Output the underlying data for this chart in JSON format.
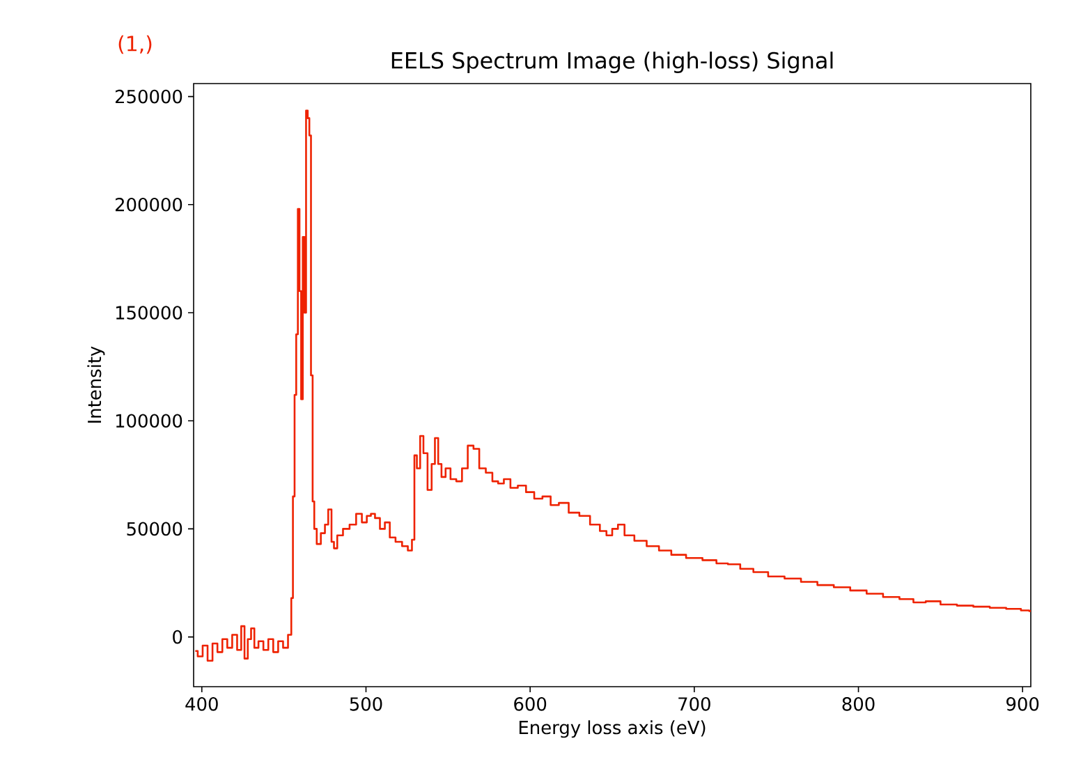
{
  "chart_data": {
    "type": "step",
    "title": "EELS Spectrum Image (high-loss) Signal",
    "xlabel": "Energy loss axis (eV)",
    "ylabel": "Intensity",
    "annotations": [
      "(1,)"
    ],
    "xlim": [
      395,
      905
    ],
    "ylim": [
      -23000,
      256000
    ],
    "xticks": [
      400,
      500,
      600,
      700,
      800,
      900
    ],
    "yticks": [
      0,
      50000,
      100000,
      150000,
      200000,
      250000
    ],
    "series": [
      {
        "color": "#ee2200",
        "x": [
          396,
          399,
          402,
          405,
          408,
          411,
          414,
          417,
          420,
          423,
          425,
          427,
          429,
          431,
          433,
          436,
          439,
          442,
          445,
          448,
          451,
          454,
          455,
          456,
          457,
          458,
          459,
          460,
          461,
          462,
          463,
          464,
          465,
          466,
          467,
          468,
          469,
          471,
          474,
          476,
          478,
          480,
          481,
          484,
          488,
          492,
          496,
          499,
          502,
          504,
          507,
          510,
          513,
          516,
          520,
          524,
          527,
          529,
          530,
          532,
          534,
          536,
          539,
          541,
          543,
          545,
          547,
          550,
          553,
          557,
          560,
          564,
          567,
          571,
          575,
          579,
          582,
          586,
          590,
          595,
          600,
          605,
          610,
          615,
          620,
          627,
          633,
          640,
          645,
          648,
          652,
          655,
          660,
          667,
          675,
          682,
          690,
          700,
          710,
          717,
          724,
          732,
          740,
          750,
          760,
          770,
          780,
          790,
          800,
          810,
          820,
          830,
          837,
          845,
          855,
          865,
          875,
          885,
          895,
          903,
          905
        ],
        "values": [
          -6500,
          -9000,
          -4000,
          -11000,
          -3000,
          -7000,
          -1000,
          -5000,
          1000,
          -6000,
          5000,
          -10000,
          -1000,
          4000,
          -5000,
          -2000,
          -6000,
          -1000,
          -7000,
          -2000,
          -5000,
          1000,
          18000,
          65000,
          112000,
          140000,
          198000,
          160000,
          110000,
          185000,
          150000,
          243500,
          240000,
          232000,
          121000,
          62700,
          50000,
          43000,
          48000,
          52000,
          59000,
          44000,
          41000,
          47000,
          50000,
          52000,
          57000,
          53000,
          56000,
          57000,
          55000,
          50000,
          53000,
          46000,
          44000,
          42000,
          40000,
          45000,
          84000,
          78000,
          93000,
          85000,
          68000,
          80000,
          92000,
          80000,
          74000,
          78000,
          73000,
          72000,
          78000,
          88500,
          87000,
          78000,
          76000,
          72000,
          71000,
          73000,
          69000,
          70000,
          67000,
          64000,
          65000,
          61000,
          62000,
          57500,
          56000,
          52000,
          49000,
          47000,
          50000,
          52000,
          47000,
          44500,
          42000,
          40000,
          38000,
          36500,
          35500,
          34000,
          33600,
          31500,
          30000,
          28000,
          27000,
          25500,
          24000,
          23000,
          21500,
          20000,
          18500,
          17500,
          16000,
          16500,
          15000,
          14500,
          14000,
          13500,
          13000,
          12300,
          12000
        ]
      }
    ]
  }
}
